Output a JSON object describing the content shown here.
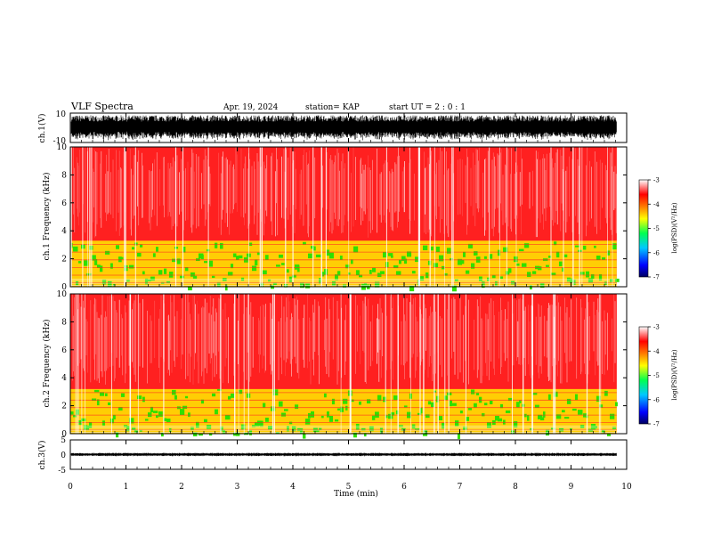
{
  "header": {
    "title": "VLF Spectra",
    "date": "Apr. 19, 2024",
    "station": "station= KAP",
    "start": "start  UT =   2 : 0  : 1"
  },
  "chart_data": [
    {
      "type": "line",
      "panel": "ch1-waveform",
      "ylabel": "ch.1(V)",
      "ylim": [
        -10,
        10
      ],
      "ytick_labels": [
        "10",
        "-10"
      ],
      "xlim": [
        0,
        10
      ],
      "note_values": "dense noise waveform filling most of the +/-10 V range from 0 to ~9.8 min"
    },
    {
      "type": "heatmap",
      "panel": "ch1-spectrogram",
      "ylabel": "ch.1 Frequency (kHz)",
      "ylim": [
        0,
        10
      ],
      "ytick_labels": [
        "0",
        "2",
        "4",
        "6",
        "8",
        "10"
      ],
      "xlim": [
        0,
        10
      ],
      "colorbar": {
        "label": "log(PSD)(V²/Hz)",
        "range": [
          -7,
          -3
        ],
        "tick_labels": [
          "-3",
          "-4",
          "-5",
          "-6",
          "-7"
        ]
      },
      "bands": [
        {
          "from_khz": 0.0,
          "to_khz": 3.3,
          "level": -4.6
        },
        {
          "from_khz": 3.3,
          "to_khz": 10.0,
          "level": -3.6
        }
      ]
    },
    {
      "type": "heatmap",
      "panel": "ch2-spectrogram",
      "ylabel": "ch.2 Frequency (kHz)",
      "ylim": [
        0,
        10
      ],
      "ytick_labels": [
        "0",
        "2",
        "4",
        "6",
        "8",
        "10"
      ],
      "xlim": [
        0,
        10
      ],
      "colorbar": {
        "label": "log(PSD)(V²/Hz)",
        "range": [
          -7,
          -3
        ],
        "tick_labels": [
          "-3",
          "-4",
          "-5",
          "-6",
          "-7"
        ]
      },
      "bands": [
        {
          "from_khz": 0.0,
          "to_khz": 3.2,
          "level": -4.8
        },
        {
          "from_khz": 3.2,
          "to_khz": 10.0,
          "level": -3.6
        }
      ]
    },
    {
      "type": "line",
      "panel": "ch3-waveform",
      "ylabel": "ch.3(V)",
      "ylim": [
        -5,
        5
      ],
      "ytick_labels": [
        "5",
        "0",
        "-5"
      ],
      "xlim": [
        0,
        10
      ],
      "note_values": "narrow band around 0 V from 0 to ~9.8 min"
    }
  ],
  "xaxis": {
    "label": "Time  (min)",
    "tick_labels": [
      "0",
      "1",
      "2",
      "3",
      "4",
      "5",
      "6",
      "7",
      "8",
      "9",
      "10"
    ],
    "range": [
      0,
      10
    ],
    "data_end_min": 9.82
  },
  "colors": {
    "colormap": [
      "#000080",
      "#0000ff",
      "#00c8ff",
      "#00ff64",
      "#ffff00",
      "#ff8000",
      "#ff0000",
      "#ffffff"
    ],
    "red": "#ff2020",
    "green": "#30e000",
    "yellow": "#ffe000"
  }
}
